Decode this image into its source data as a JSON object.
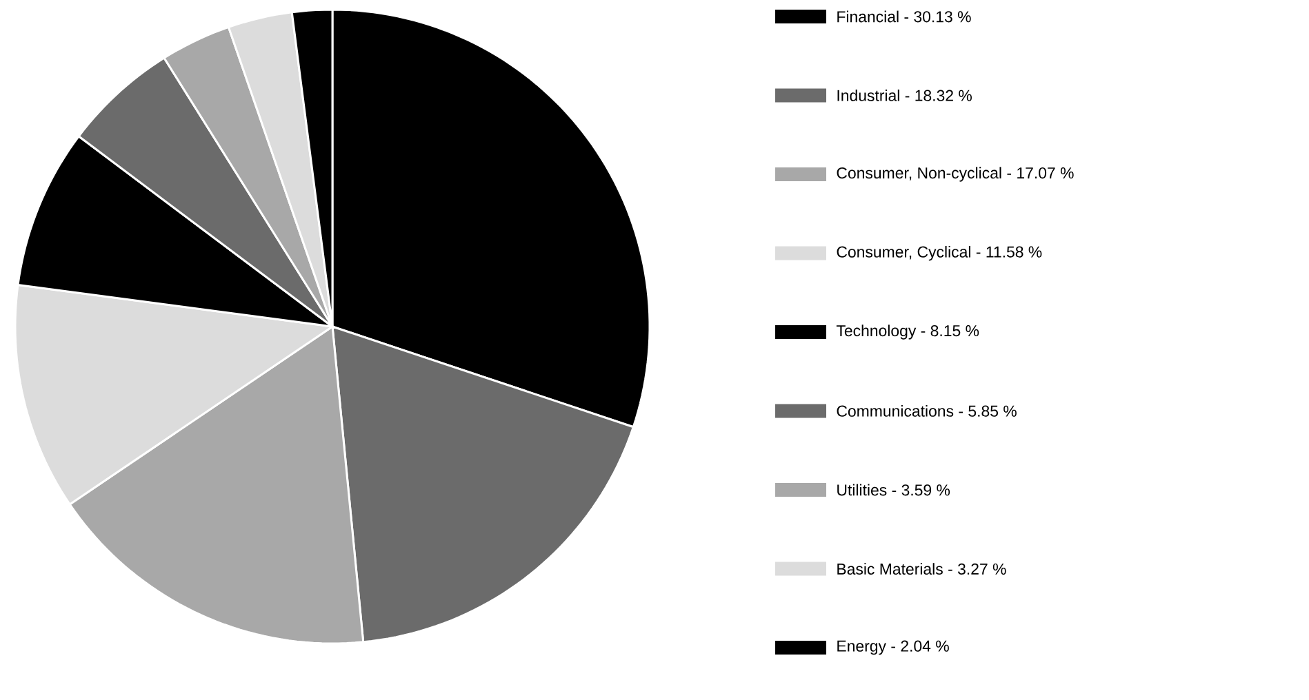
{
  "chart_data": {
    "type": "pie",
    "categories": [
      "Financial - 30.13 %",
      "Industrial - 18.32 %",
      "Consumer, Non-cyclical - 17.07 %",
      "Consumer, Cyclical - 11.58 %",
      "Technology - 8.15 %",
      "Communications - 5.85 %",
      "Utilities - 3.59 %",
      "Basic Materials - 3.27 %",
      "Energy - 2.04 %"
    ],
    "values": [
      30.13,
      18.32,
      17.07,
      11.58,
      8.15,
      5.85,
      3.59,
      3.27,
      2.04
    ],
    "colors": [
      "#000000",
      "#6b6b6b",
      "#a8a8a8",
      "#dcdcdc",
      "#000000",
      "#6b6b6b",
      "#a8a8a8",
      "#dcdcdc",
      "#000000"
    ],
    "legend": "right"
  }
}
